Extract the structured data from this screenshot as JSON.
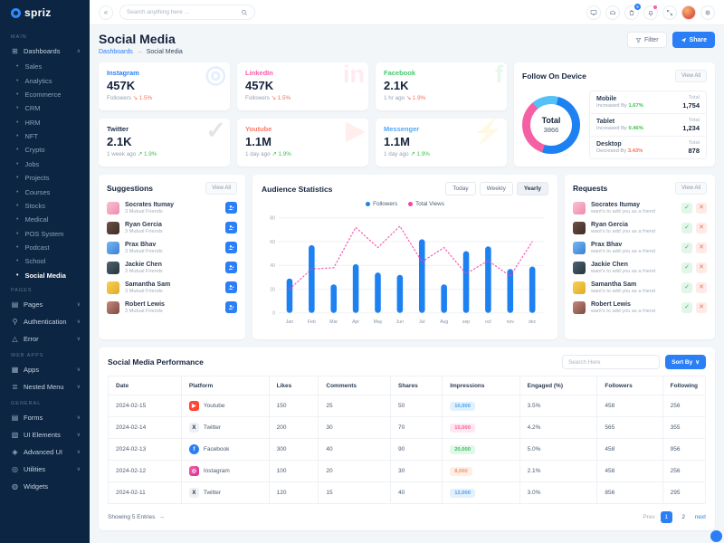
{
  "sidebar": {
    "logo": "spriz",
    "section_main": "MAIN",
    "dashboards": {
      "label": "Dashboards",
      "glyph": "⊞",
      "chevron": "∧"
    },
    "dashboard_items": [
      {
        "label": "Sales",
        "cls": ""
      },
      {
        "label": "Analytics",
        "cls": ""
      },
      {
        "label": "Ecommerce",
        "cls": ""
      },
      {
        "label": "CRM",
        "cls": ""
      },
      {
        "label": "HRM",
        "cls": ""
      },
      {
        "label": "NFT",
        "cls": ""
      },
      {
        "label": "Crypto",
        "cls": ""
      },
      {
        "label": "Jobs",
        "cls": ""
      },
      {
        "label": "Projects",
        "cls": ""
      },
      {
        "label": "Courses",
        "cls": ""
      },
      {
        "label": "Stocks",
        "cls": ""
      },
      {
        "label": "Medical",
        "cls": ""
      },
      {
        "label": "POS System",
        "cls": ""
      },
      {
        "label": "Podcast",
        "cls": ""
      },
      {
        "label": "School",
        "cls": ""
      },
      {
        "label": "Social Media",
        "cls": "active"
      }
    ],
    "section_pages": "PAGES",
    "pages_items": [
      {
        "label": "Pages",
        "glyph": "▤",
        "chev": "∨"
      },
      {
        "label": "Authentication",
        "glyph": "⚲",
        "chev": "∨"
      },
      {
        "label": "Error",
        "glyph": "△",
        "chev": "∨"
      }
    ],
    "section_webapps": "WEB APPS",
    "webapps_items": [
      {
        "label": "Apps",
        "glyph": "▦",
        "chev": "∨"
      },
      {
        "label": "Nested Menu",
        "glyph": "≣",
        "chev": "∨"
      }
    ],
    "section_general": "GENERAL",
    "general_items": [
      {
        "label": "Forms",
        "glyph": "▤",
        "chev": "∨"
      },
      {
        "label": "UI Elements",
        "glyph": "▧",
        "chev": "∨"
      },
      {
        "label": "Advanced UI",
        "glyph": "◈",
        "chev": "∨"
      },
      {
        "label": "Utilities",
        "glyph": "◎",
        "chev": "∨"
      },
      {
        "label": "Widgets",
        "glyph": "◍",
        "chev": ""
      }
    ]
  },
  "header": {
    "collapse_icon": "«",
    "search_placeholder": "Search anything here ...",
    "cart_badge": "5"
  },
  "page_header": {
    "title": "Social Media",
    "breadcrumb_parent": "Dashboards",
    "breadcrumb_sep": "→",
    "breadcrumb_current": "Social Media",
    "filter_label": "Filter",
    "share_label": "Share"
  },
  "stat_cards": [
    {
      "platform": "Instagram",
      "color_class": "c-blue",
      "value": "457K",
      "caption": "Followers",
      "arrow": "↘",
      "trend": "1.5%",
      "dir": "down",
      "glyph": "◎"
    },
    {
      "platform": "LinkedIn",
      "color_class": "c-pink",
      "value": "457K",
      "caption": "Followers",
      "arrow": "↘",
      "trend": "1.5%",
      "dir": "down",
      "glyph": "in"
    },
    {
      "platform": "Facebook",
      "color_class": "c-green",
      "value": "2.1K",
      "caption": "1 hr ago",
      "arrow": "↘",
      "trend": "1.9%",
      "dir": "down",
      "glyph": "f"
    },
    {
      "platform": "Twitter",
      "color_class": "c-dark",
      "value": "2.1K",
      "caption": "1 week ago",
      "arrow": "↗",
      "trend": "1.9%",
      "dir": "up",
      "glyph": "✓"
    },
    {
      "platform": "Youtube",
      "color_class": "c-red",
      "value": "1.1M",
      "caption": "1 day ago",
      "arrow": "↗",
      "trend": "1.9%",
      "dir": "up",
      "glyph": "▶"
    },
    {
      "platform": "Messenger",
      "color_class": "c-lblue",
      "value": "1.1M",
      "caption": "1 day ago",
      "arrow": "↗",
      "trend": "1.9%",
      "dir": "up",
      "glyph": "⚡"
    }
  ],
  "follow_on_device": {
    "title": "Follow On Device",
    "view_all": "View All",
    "total_label": "Total",
    "total_value": "3866",
    "donut": {
      "colors": {
        "blue": "#1d81f1",
        "pink": "#f560a5",
        "light": "#55c2f7"
      },
      "stops": [
        [
          "#55c2f7",
          0,
          4
        ],
        [
          "#1d81f1",
          4,
          55
        ],
        [
          "#f560a5",
          55,
          89
        ],
        [
          "#55c2f7",
          89,
          100
        ]
      ]
    },
    "devices": [
      {
        "name": "Mobile",
        "change": "Increased By",
        "pct": "1.67%",
        "pct_dir": "up",
        "total_label": "Total",
        "total": "1,754"
      },
      {
        "name": "Tablet",
        "change": "Increased By",
        "pct": "0.46%",
        "pct_dir": "up",
        "total_label": "Total",
        "total": "1,234"
      },
      {
        "name": "Desktop",
        "change": "Decresed By",
        "pct": "3.43%",
        "pct_dir": "down",
        "total_label": "Total",
        "total": "878"
      }
    ]
  },
  "suggestions": {
    "title": "Suggestions",
    "view_all": "View All",
    "people": [
      {
        "name": "Socrates Itumay",
        "sub": "3 Mutual Friends",
        "av": "av1"
      },
      {
        "name": "Ryan Gercia",
        "sub": "3 Mutual Friends",
        "av": "av2"
      },
      {
        "name": "Prax Bhav",
        "sub": "3 Mutual Friends",
        "av": "av3"
      },
      {
        "name": "Jackie Chen",
        "sub": "3 Mutual Friends",
        "av": "av4"
      },
      {
        "name": "Samantha Sam",
        "sub": "3 Mutual Friends",
        "av": "av5"
      },
      {
        "name": "Robert Lewis",
        "sub": "3 Mutual Friends",
        "av": "av6"
      }
    ]
  },
  "audience": {
    "title": "Audience Statistics",
    "tabs": [
      {
        "label": "Today",
        "cls": ""
      },
      {
        "label": "Weekly",
        "cls": ""
      },
      {
        "label": "Yearly",
        "cls": "active"
      }
    ],
    "legend": [
      {
        "label": "Followers",
        "color": "#1d81f1"
      },
      {
        "label": "Total Views",
        "color": "#f743a6"
      }
    ]
  },
  "chart_data": {
    "type": "bar+line",
    "title": "Audience Statistics",
    "categories": [
      "Jan",
      "Feb",
      "Mar",
      "Apr",
      "May",
      "Jun",
      "Jul",
      "Aug",
      "sep",
      "oct",
      "nov",
      "dec"
    ],
    "series": [
      {
        "name": "Followers",
        "type": "bar",
        "color": "#1d81f1",
        "values": [
          29,
          57,
          24,
          41,
          34,
          32,
          62,
          24,
          52,
          56,
          37,
          39
        ]
      },
      {
        "name": "Total Views",
        "type": "line",
        "color": "#f743a6",
        "values": [
          20,
          37,
          38,
          72,
          55,
          73,
          43,
          55,
          33,
          44,
          31,
          60
        ]
      }
    ],
    "ylim": [
      0,
      80
    ],
    "yticks": [
      0,
      20,
      40,
      60,
      80
    ],
    "grid": true,
    "legend_position": "top"
  },
  "requests": {
    "title": "Requests",
    "view_all": "View All",
    "check_icon": "✓",
    "close_icon": "✕",
    "people": [
      {
        "name": "Socrates Itumay",
        "sub": "want's to add you as a friend",
        "av": "av1"
      },
      {
        "name": "Ryan Gercia",
        "sub": "want's to add you as a friend",
        "av": "av2"
      },
      {
        "name": "Prax Bhav",
        "sub": "want's to add you as a friend",
        "av": "av3"
      },
      {
        "name": "Jackie Chen",
        "sub": "want's to add you as a friend",
        "av": "av4"
      },
      {
        "name": "Samantha Sam",
        "sub": "want's to add you as a friend",
        "av": "av5"
      },
      {
        "name": "Robert Lewis",
        "sub": "want's to add you as a friend",
        "av": "av6"
      }
    ]
  },
  "table": {
    "title": "Social Media Performance",
    "search_placeholder": "Search Here",
    "sort_label": "Sort By",
    "sort_caret": "∨",
    "columns": [
      "Date",
      "Platform",
      "Likes",
      "Comments",
      "Shares",
      "Impressions",
      "Engaged (%)",
      "Followers",
      "Following"
    ],
    "rows": [
      {
        "date": "2024-02-15",
        "platform": "Youtube",
        "picon_cls": "pi-yt",
        "picon_glyph": "▶",
        "likes": "150",
        "comments": "25",
        "shares": "50",
        "impressions": "10,000",
        "badge_cls": "b-blue",
        "engaged": "3.5%",
        "followers": "458",
        "following": "256"
      },
      {
        "date": "2024-02-14",
        "platform": "Twitter",
        "picon_cls": "pi-tw",
        "picon_glyph": "X",
        "likes": "200",
        "comments": "30",
        "shares": "70",
        "impressions": "15,000",
        "badge_cls": "b-pink",
        "engaged": "4.2%",
        "followers": "565",
        "following": "355"
      },
      {
        "date": "2024-02-13",
        "platform": "Facebook",
        "picon_cls": "pi-fb",
        "picon_glyph": "f",
        "likes": "300",
        "comments": "40",
        "shares": "90",
        "impressions": "20,000",
        "badge_cls": "b-green",
        "engaged": "5.0%",
        "followers": "458",
        "following": "956"
      },
      {
        "date": "2024-02-12",
        "platform": "Instagram",
        "picon_cls": "pi-ig",
        "picon_glyph": "◎",
        "likes": "100",
        "comments": "20",
        "shares": "30",
        "impressions": "8,000",
        "badge_cls": "b-orange",
        "engaged": "2.1%",
        "followers": "458",
        "following": "256"
      },
      {
        "date": "2024-02-11",
        "platform": "Twitter",
        "picon_cls": "pi-tw",
        "picon_glyph": "X",
        "likes": "120",
        "comments": "15",
        "shares": "40",
        "impressions": "12,000",
        "badge_cls": "b-blue",
        "engaged": "3.0%",
        "followers": "856",
        "following": "295"
      }
    ],
    "footer": {
      "showing": "Showing 5 Entries",
      "showing_arrow": "→",
      "prev": "Prev",
      "page1": "1",
      "page2": "2",
      "next": "next"
    }
  }
}
